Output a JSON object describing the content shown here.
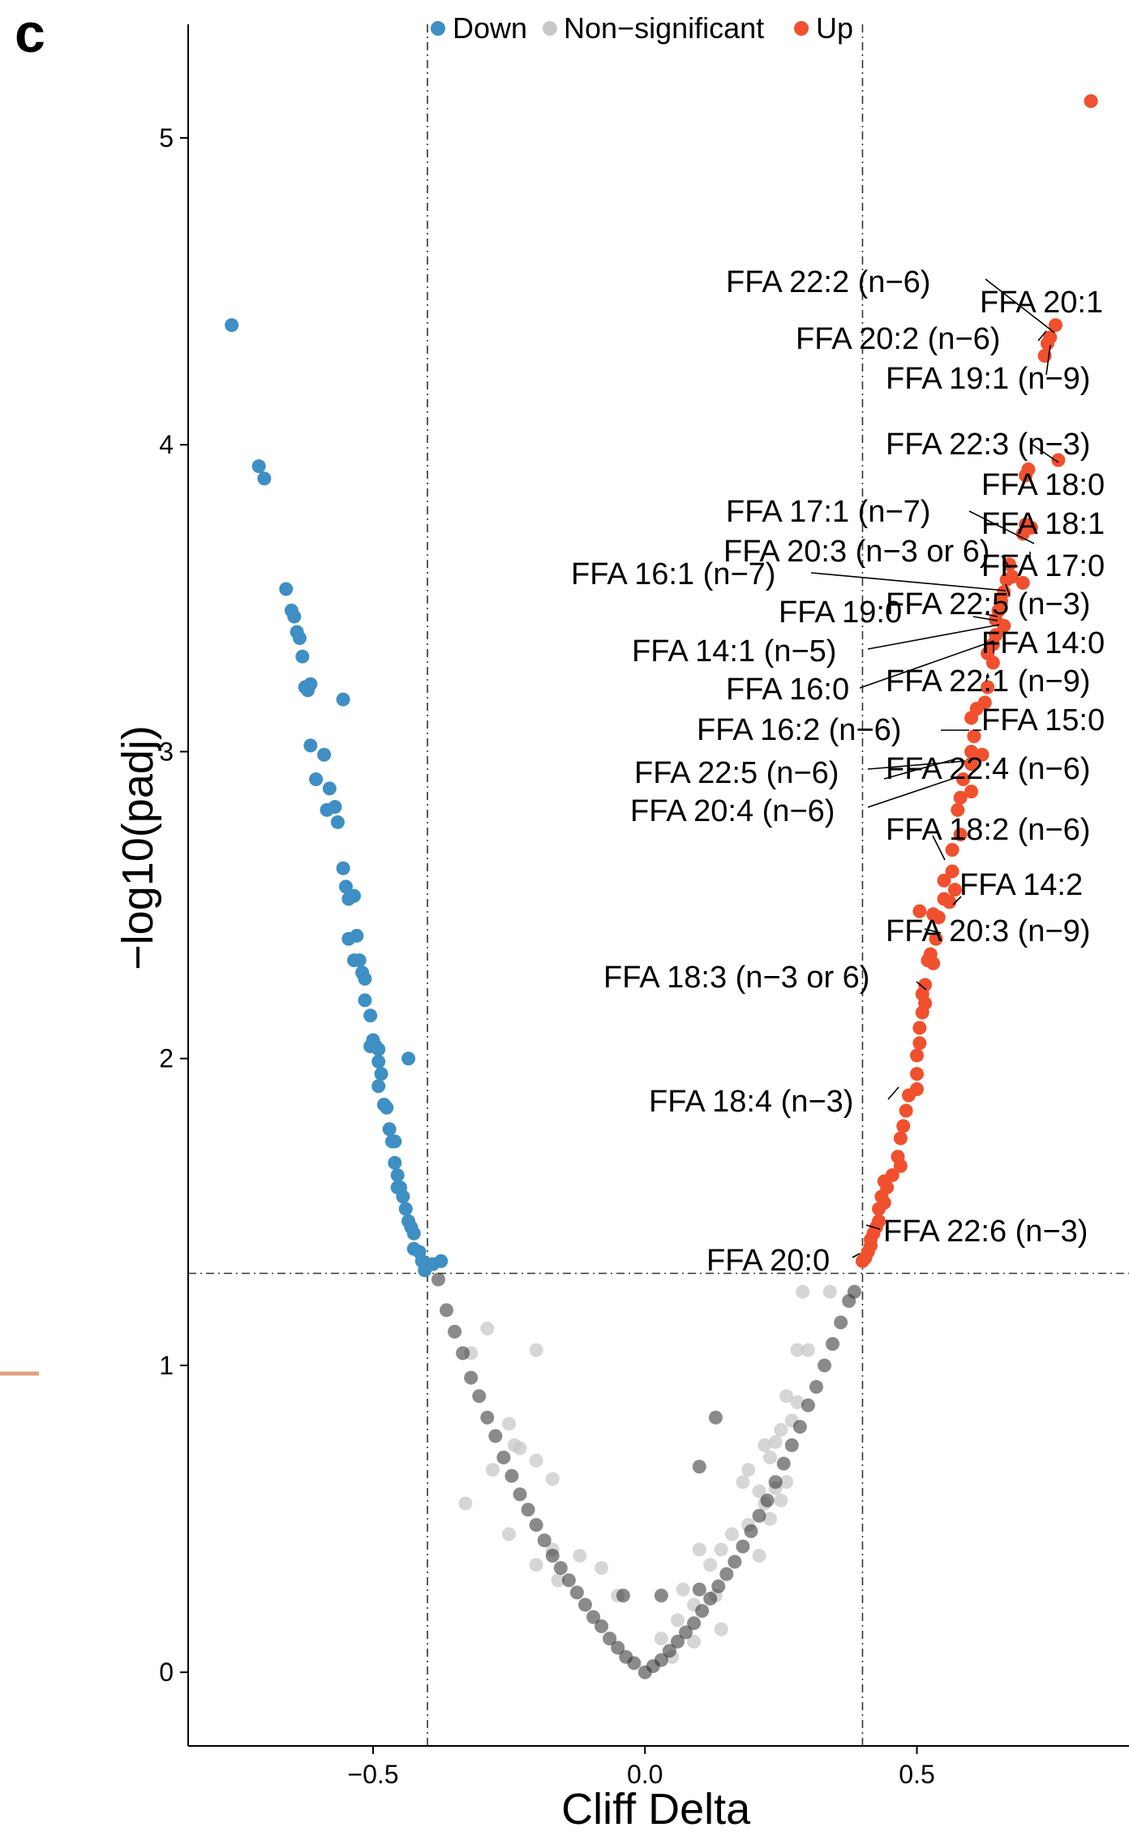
{
  "panel_label": "c",
  "chart_data": {
    "type": "scatter",
    "xlabel": "Cliff Delta",
    "ylabel": "−log10(padj)",
    "xlim": [
      -0.84,
      0.89
    ],
    "ylim": [
      -0.24,
      5.37
    ],
    "xticks": [
      -0.5,
      0.0,
      0.5
    ],
    "xtick_labels": [
      "−0.5",
      "0.0",
      "0.5"
    ],
    "yticks": [
      0,
      1,
      2,
      3,
      4,
      5
    ],
    "ytick_labels": [
      "0",
      "1",
      "2",
      "3",
      "4",
      "5"
    ],
    "thresholds": {
      "x": [
        -0.4,
        0.4
      ],
      "y": 1.3
    },
    "grid": false,
    "legend_position": "top",
    "legend": [
      {
        "name": "Down",
        "color": "#3E8FC4"
      },
      {
        "name": "Non−significant",
        "color": "#C8C8C8"
      },
      {
        "name": "Up",
        "color": "#F0502D"
      }
    ],
    "series": [
      {
        "name": "Down",
        "color": "#3E8FC4",
        "points": [
          [
            -0.76,
            4.39
          ],
          [
            -0.71,
            3.93
          ],
          [
            -0.7,
            3.89
          ],
          [
            -0.66,
            3.53
          ],
          [
            -0.65,
            3.46
          ],
          [
            -0.645,
            3.44
          ],
          [
            -0.64,
            3.39
          ],
          [
            -0.635,
            3.37
          ],
          [
            -0.63,
            3.31
          ],
          [
            -0.625,
            3.21
          ],
          [
            -0.615,
            3.22
          ],
          [
            -0.62,
            3.2
          ],
          [
            -0.555,
            3.17
          ],
          [
            -0.615,
            3.02
          ],
          [
            -0.59,
            2.99
          ],
          [
            -0.605,
            2.91
          ],
          [
            -0.58,
            2.88
          ],
          [
            -0.585,
            2.81
          ],
          [
            -0.57,
            2.82
          ],
          [
            -0.565,
            2.77
          ],
          [
            -0.555,
            2.62
          ],
          [
            -0.55,
            2.56
          ],
          [
            -0.535,
            2.53
          ],
          [
            -0.545,
            2.52
          ],
          [
            -0.545,
            2.39
          ],
          [
            -0.53,
            2.4
          ],
          [
            -0.535,
            2.32
          ],
          [
            -0.525,
            2.32
          ],
          [
            -0.52,
            2.28
          ],
          [
            -0.515,
            2.26
          ],
          [
            -0.515,
            2.19
          ],
          [
            -0.505,
            2.14
          ],
          [
            -0.5,
            2.06
          ],
          [
            -0.495,
            2.04
          ],
          [
            -0.49,
            2.03
          ],
          [
            -0.505,
            2.04
          ],
          [
            -0.49,
            1.99
          ],
          [
            -0.485,
            1.95
          ],
          [
            -0.435,
            2.0
          ],
          [
            -0.49,
            1.91
          ],
          [
            -0.48,
            1.85
          ],
          [
            -0.475,
            1.84
          ],
          [
            -0.47,
            1.77
          ],
          [
            -0.465,
            1.73
          ],
          [
            -0.46,
            1.73
          ],
          [
            -0.46,
            1.66
          ],
          [
            -0.455,
            1.62
          ],
          [
            -0.455,
            1.58
          ],
          [
            -0.45,
            1.58
          ],
          [
            -0.445,
            1.55
          ],
          [
            -0.44,
            1.51
          ],
          [
            -0.435,
            1.47
          ],
          [
            -0.43,
            1.45
          ],
          [
            -0.425,
            1.43
          ],
          [
            -0.425,
            1.38
          ],
          [
            -0.415,
            1.37
          ],
          [
            -0.41,
            1.34
          ],
          [
            -0.4,
            1.33
          ],
          [
            -0.39,
            1.33
          ],
          [
            -0.375,
            1.34
          ],
          [
            -0.405,
            1.31
          ]
        ]
      },
      {
        "name": "Up",
        "color": "#F0502D",
        "points": [
          [
            0.82,
            5.12
          ],
          [
            0.755,
            4.39
          ],
          [
            0.745,
            4.35
          ],
          [
            0.74,
            4.33
          ],
          [
            0.735,
            4.29
          ],
          [
            0.76,
            3.95
          ],
          [
            0.705,
            3.92
          ],
          [
            0.7,
            3.9
          ],
          [
            0.7,
            3.74
          ],
          [
            0.71,
            3.73
          ],
          [
            0.695,
            3.71
          ],
          [
            0.67,
            3.61
          ],
          [
            0.675,
            3.57
          ],
          [
            0.665,
            3.56
          ],
          [
            0.695,
            3.55
          ],
          [
            0.66,
            3.52
          ],
          [
            0.655,
            3.49
          ],
          [
            0.65,
            3.46
          ],
          [
            0.645,
            3.43
          ],
          [
            0.66,
            3.41
          ],
          [
            0.645,
            3.38
          ],
          [
            0.64,
            3.35
          ],
          [
            0.63,
            3.32
          ],
          [
            0.64,
            3.29
          ],
          [
            0.63,
            3.21
          ],
          [
            0.625,
            3.16
          ],
          [
            0.61,
            3.14
          ],
          [
            0.6,
            3.11
          ],
          [
            0.605,
            3.05
          ],
          [
            0.6,
            3.0
          ],
          [
            0.62,
            2.99
          ],
          [
            0.6,
            2.96
          ],
          [
            0.585,
            2.91
          ],
          [
            0.6,
            2.87
          ],
          [
            0.58,
            2.85
          ],
          [
            0.575,
            2.81
          ],
          [
            0.58,
            2.73
          ],
          [
            0.565,
            2.68
          ],
          [
            0.565,
            2.61
          ],
          [
            0.55,
            2.58
          ],
          [
            0.57,
            2.55
          ],
          [
            0.55,
            2.52
          ],
          [
            0.56,
            2.51
          ],
          [
            0.53,
            2.47
          ],
          [
            0.505,
            2.48
          ],
          [
            0.54,
            2.46
          ],
          [
            0.535,
            2.39
          ],
          [
            0.525,
            2.34
          ],
          [
            0.52,
            2.32
          ],
          [
            0.53,
            2.31
          ],
          [
            0.515,
            2.24
          ],
          [
            0.51,
            2.21
          ],
          [
            0.515,
            2.18
          ],
          [
            0.51,
            2.15
          ],
          [
            0.505,
            2.1
          ],
          [
            0.505,
            2.05
          ],
          [
            0.5,
            2.01
          ],
          [
            0.5,
            1.95
          ],
          [
            0.5,
            1.9
          ],
          [
            0.485,
            1.88
          ],
          [
            0.48,
            1.83
          ],
          [
            0.475,
            1.78
          ],
          [
            0.47,
            1.74
          ],
          [
            0.465,
            1.68
          ],
          [
            0.47,
            1.65
          ],
          [
            0.455,
            1.62
          ],
          [
            0.44,
            1.6
          ],
          [
            0.445,
            1.58
          ],
          [
            0.435,
            1.55
          ],
          [
            0.44,
            1.53
          ],
          [
            0.43,
            1.51
          ],
          [
            0.43,
            1.47
          ],
          [
            0.425,
            1.45
          ],
          [
            0.42,
            1.43
          ],
          [
            0.415,
            1.41
          ],
          [
            0.415,
            1.39
          ],
          [
            0.41,
            1.37
          ],
          [
            0.405,
            1.35
          ],
          [
            0.4,
            1.34
          ]
        ]
      },
      {
        "name": "Non−significant",
        "color": "#C8C8C8",
        "points": [
          [
            -0.2,
            1.05
          ],
          [
            -0.29,
            1.12
          ],
          [
            -0.32,
            1.04
          ],
          [
            -0.25,
            0.81
          ],
          [
            -0.24,
            0.74
          ],
          [
            -0.23,
            0.73
          ],
          [
            -0.2,
            0.69
          ],
          [
            -0.17,
            0.63
          ],
          [
            -0.28,
            0.66
          ],
          [
            -0.33,
            0.55
          ],
          [
            -0.25,
            0.45
          ],
          [
            -0.2,
            0.35
          ],
          [
            -0.16,
            0.3
          ],
          [
            -0.17,
            0.4
          ],
          [
            -0.12,
            0.38
          ],
          [
            -0.08,
            0.34
          ],
          [
            -0.05,
            0.25
          ],
          [
            0.05,
            0.05
          ],
          [
            0.03,
            0.11
          ],
          [
            0.06,
            0.17
          ],
          [
            0.07,
            0.27
          ],
          [
            0.09,
            0.22
          ],
          [
            0.13,
            0.25
          ],
          [
            0.09,
            0.1
          ],
          [
            0.14,
            0.14
          ],
          [
            0.14,
            0.4
          ],
          [
            0.16,
            0.45
          ],
          [
            0.19,
            0.48
          ],
          [
            0.22,
            0.55
          ],
          [
            0.18,
            0.62
          ],
          [
            0.19,
            0.66
          ],
          [
            0.21,
            0.59
          ],
          [
            0.23,
            0.7
          ],
          [
            0.24,
            0.75
          ],
          [
            0.22,
            0.74
          ],
          [
            0.25,
            0.79
          ],
          [
            0.27,
            0.82
          ],
          [
            0.28,
            0.88
          ],
          [
            0.26,
            0.9
          ],
          [
            0.3,
            1.05
          ],
          [
            0.28,
            1.05
          ],
          [
            0.26,
            0.62
          ],
          [
            0.25,
            0.56
          ],
          [
            0.21,
            0.38
          ],
          [
            0.1,
            0.4
          ],
          [
            0.12,
            0.35
          ],
          [
            0.29,
            1.24
          ],
          [
            0.34,
            1.24
          ],
          [
            0.23,
            0.5
          ],
          [
            0.24,
            0.6
          ]
        ]
      },
      {
        "name": "Non−significant (dense)",
        "color": "#2A2A2A",
        "points": [
          [
            0.13,
            0.83
          ],
          [
            0.1,
            0.67
          ],
          [
            0.1,
            0.27
          ],
          [
            0.03,
            0.25
          ],
          [
            -0.04,
            0.25
          ],
          [
            -0.38,
            1.28
          ],
          [
            -0.365,
            1.18
          ],
          [
            -0.35,
            1.11
          ],
          [
            -0.335,
            1.04
          ],
          [
            -0.32,
            0.96
          ],
          [
            -0.305,
            0.9
          ],
          [
            -0.29,
            0.83
          ],
          [
            -0.275,
            0.77
          ],
          [
            -0.26,
            0.7
          ],
          [
            -0.245,
            0.64
          ],
          [
            -0.23,
            0.58
          ],
          [
            -0.215,
            0.53
          ],
          [
            -0.2,
            0.48
          ],
          [
            -0.185,
            0.43
          ],
          [
            -0.17,
            0.38
          ],
          [
            -0.155,
            0.34
          ],
          [
            -0.14,
            0.3
          ],
          [
            -0.125,
            0.26
          ],
          [
            -0.11,
            0.22
          ],
          [
            -0.095,
            0.18
          ],
          [
            -0.08,
            0.15
          ],
          [
            -0.065,
            0.11
          ],
          [
            -0.05,
            0.08
          ],
          [
            -0.035,
            0.05
          ],
          [
            -0.02,
            0.03
          ],
          [
            0.0,
            0.0
          ],
          [
            0.015,
            0.02
          ],
          [
            0.03,
            0.04
          ],
          [
            0.045,
            0.07
          ],
          [
            0.06,
            0.1
          ],
          [
            0.075,
            0.13
          ],
          [
            0.09,
            0.16
          ],
          [
            0.105,
            0.2
          ],
          [
            0.12,
            0.24
          ],
          [
            0.135,
            0.28
          ],
          [
            0.15,
            0.32
          ],
          [
            0.165,
            0.36
          ],
          [
            0.18,
            0.41
          ],
          [
            0.195,
            0.46
          ],
          [
            0.21,
            0.51
          ],
          [
            0.225,
            0.56
          ],
          [
            0.24,
            0.62
          ],
          [
            0.255,
            0.68
          ],
          [
            0.27,
            0.74
          ],
          [
            0.285,
            0.8
          ],
          [
            0.3,
            0.87
          ],
          [
            0.315,
            0.93
          ],
          [
            0.33,
            1.0
          ],
          [
            0.345,
            1.07
          ],
          [
            0.36,
            1.14
          ],
          [
            0.375,
            1.21
          ],
          [
            0.385,
            1.24
          ]
        ]
      }
    ],
    "annotations": [
      "FFA 22:2 (n−6)",
      "FFA 20:1",
      "FFA 20:2 (n−6)",
      "FFA 19:1 (n−9)",
      "FFA 22:3 (n−3)",
      "FFA 18:0",
      "FFA 17:1 (n−7)",
      "FFA 18:1",
      "FFA 20:3 (n−3 or 6)",
      "FFA 17:0",
      "FFA 16:1 (n−7)",
      "FFA 19:0",
      "FFA 22:5 (n−3)",
      "FFA 14:1 (n−5)",
      "FFA 14:0",
      "FFA 16:0",
      "FFA 22:1 (n−9)",
      "FFA 15:0",
      "FFA 16:2 (n−6)",
      "FFA 22:5 (n−6)",
      "FFA 22:4 (n−6)",
      "FFA 20:4 (n−6)",
      "FFA 18:2 (n−6)",
      "FFA 14:2",
      "FFA 20:3 (n−9)",
      "FFA 18:3 (n−3 or 6)",
      "FFA 18:4 (n−3)",
      "FFA 22:6 (n−3)",
      "FFA 20:0"
    ]
  }
}
